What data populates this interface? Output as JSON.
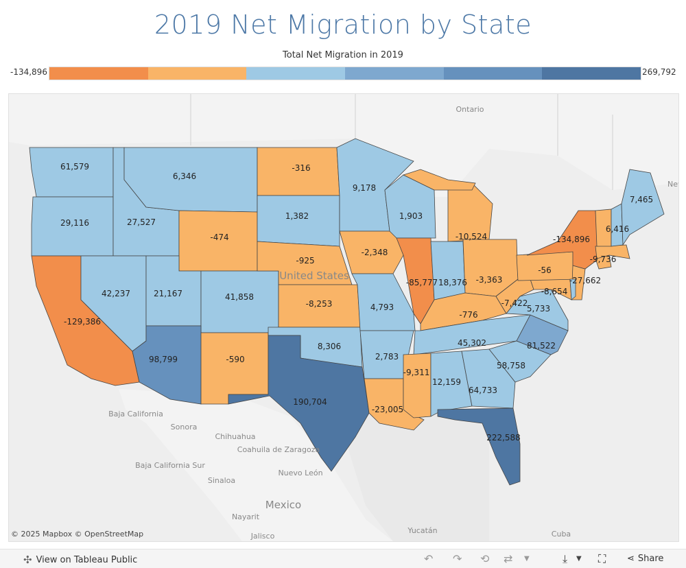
{
  "title": "2019 Net Migration by State",
  "legend": {
    "title": "Total Net Migration in 2019",
    "min_label": "-134,896",
    "max_label": "269,792",
    "colors": [
      "#f28e4b",
      "#f9b467",
      "#9ec9e4",
      "#7ea8cf",
      "#6691bd",
      "#4e76a2"
    ]
  },
  "map": {
    "attribution": "© 2025 Mapbox © OpenStreetMap",
    "country_label": "United States",
    "place_labels": [
      "Ontario",
      "Baja California",
      "Sonora",
      "Chihuahua",
      "Coahuila de Zaragoza",
      "Nuevo León",
      "Baja California Sur",
      "Sinaloa",
      "Mexico",
      "Nayarit",
      "Jalisco",
      "Yucatán",
      "Cuba",
      "New Brunswick"
    ]
  },
  "chart_data": {
    "type": "choropleth",
    "title": "2019 Net Migration by State",
    "measure": "Total Net Migration in 2019",
    "range": [
      -134896,
      269792
    ],
    "values": [
      {
        "state": "WA",
        "value": 61579
      },
      {
        "state": "OR",
        "value": 29116
      },
      {
        "state": "CA",
        "value": -129386
      },
      {
        "state": "ID",
        "value": 27527
      },
      {
        "state": "NV",
        "value": 42237
      },
      {
        "state": "MT",
        "value": 6346
      },
      {
        "state": "WY",
        "value": -474
      },
      {
        "state": "UT",
        "value": 21167
      },
      {
        "state": "CO",
        "value": 41858
      },
      {
        "state": "AZ",
        "value": 98799
      },
      {
        "state": "NM",
        "value": -590
      },
      {
        "state": "ND",
        "value": -316
      },
      {
        "state": "SD",
        "value": 1382
      },
      {
        "state": "NE",
        "value": -925
      },
      {
        "state": "KS",
        "value": -8253
      },
      {
        "state": "OK",
        "value": 8306
      },
      {
        "state": "TX",
        "value": 190704
      },
      {
        "state": "MN",
        "value": 9178
      },
      {
        "state": "IA",
        "value": -2348
      },
      {
        "state": "MO",
        "value": 4793
      },
      {
        "state": "AR",
        "value": 2783
      },
      {
        "state": "LA",
        "value": -23005
      },
      {
        "state": "WI",
        "value": 1903
      },
      {
        "state": "IL",
        "value": -85777
      },
      {
        "state": "MI",
        "value": -10524
      },
      {
        "state": "IN",
        "value": 18376
      },
      {
        "state": "OH",
        "value": -3363
      },
      {
        "state": "KY",
        "value": -776
      },
      {
        "state": "TN",
        "value": 45302
      },
      {
        "state": "MS",
        "value": -9311
      },
      {
        "state": "AL",
        "value": 12159
      },
      {
        "state": "GA",
        "value": 64733
      },
      {
        "state": "FL",
        "value": 222588
      },
      {
        "state": "SC",
        "value": 58758
      },
      {
        "state": "NC",
        "value": 81522
      },
      {
        "state": "VA",
        "value": 5733
      },
      {
        "state": "WV",
        "value": -7422
      },
      {
        "state": "MD",
        "value": -8654
      },
      {
        "state": "PA",
        "value": -56
      },
      {
        "state": "NJ",
        "value": -27662
      },
      {
        "state": "NY",
        "value": -134896
      },
      {
        "state": "CT",
        "value": -9736
      },
      {
        "state": "VT",
        "value": 6416
      },
      {
        "state": "ME",
        "value": 7465
      }
    ]
  },
  "footer": {
    "view_link": "View on Tableau Public",
    "share_label": "Share"
  }
}
